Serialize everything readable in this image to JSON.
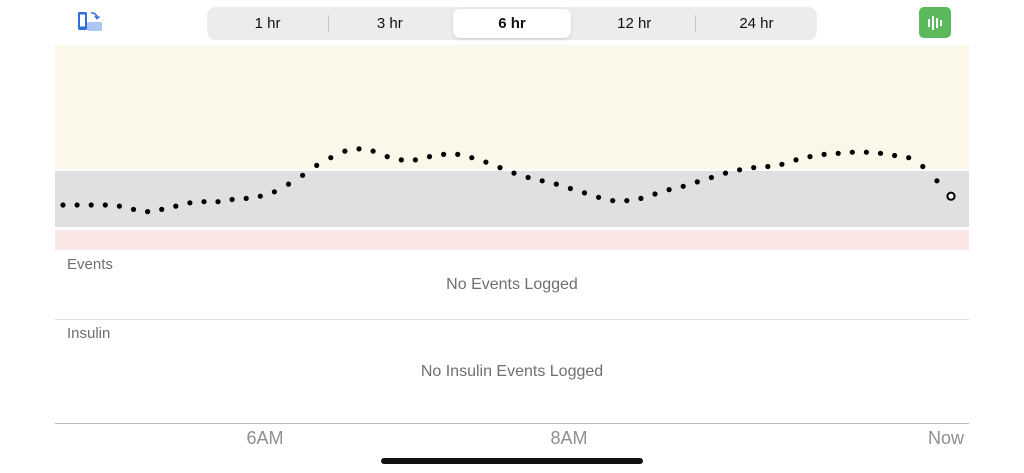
{
  "header": {
    "rotate_icon": "phone-rotate-icon",
    "range_options": [
      "1 hr",
      "3 hr",
      "6 hr",
      "12 hr",
      "24 hr"
    ],
    "selected_range": "6 hr",
    "stats_icon": "bar-chart-icon"
  },
  "colors": {
    "high_band": "#fbf8ea",
    "target_band": "#e0e0e0",
    "low_band": "#fbe6e6",
    "accent_green": "#5cb85c"
  },
  "chart_data": {
    "type": "scatter",
    "x_ticks": [
      "6AM",
      "8AM",
      "Now"
    ],
    "values": [
      0.7,
      0.7,
      0.7,
      0.7,
      0.69,
      0.66,
      0.64,
      0.66,
      0.69,
      0.72,
      0.73,
      0.73,
      0.75,
      0.76,
      0.78,
      0.82,
      0.89,
      0.97,
      1.06,
      1.13,
      1.19,
      1.21,
      1.19,
      1.14,
      1.11,
      1.11,
      1.14,
      1.16,
      1.16,
      1.13,
      1.09,
      1.04,
      0.99,
      0.95,
      0.92,
      0.89,
      0.85,
      0.81,
      0.77,
      0.74,
      0.74,
      0.76,
      0.8,
      0.84,
      0.87,
      0.91,
      0.95,
      0.99,
      1.02,
      1.04,
      1.05,
      1.07,
      1.11,
      1.14,
      1.16,
      1.17,
      1.18,
      1.18,
      1.17,
      1.15,
      1.13,
      1.05,
      0.92,
      0.78
    ]
  },
  "events": {
    "label": "Events",
    "empty_text": "No Events Logged"
  },
  "insulin": {
    "label": "Insulin",
    "empty_text": "No Insulin Events Logged"
  }
}
